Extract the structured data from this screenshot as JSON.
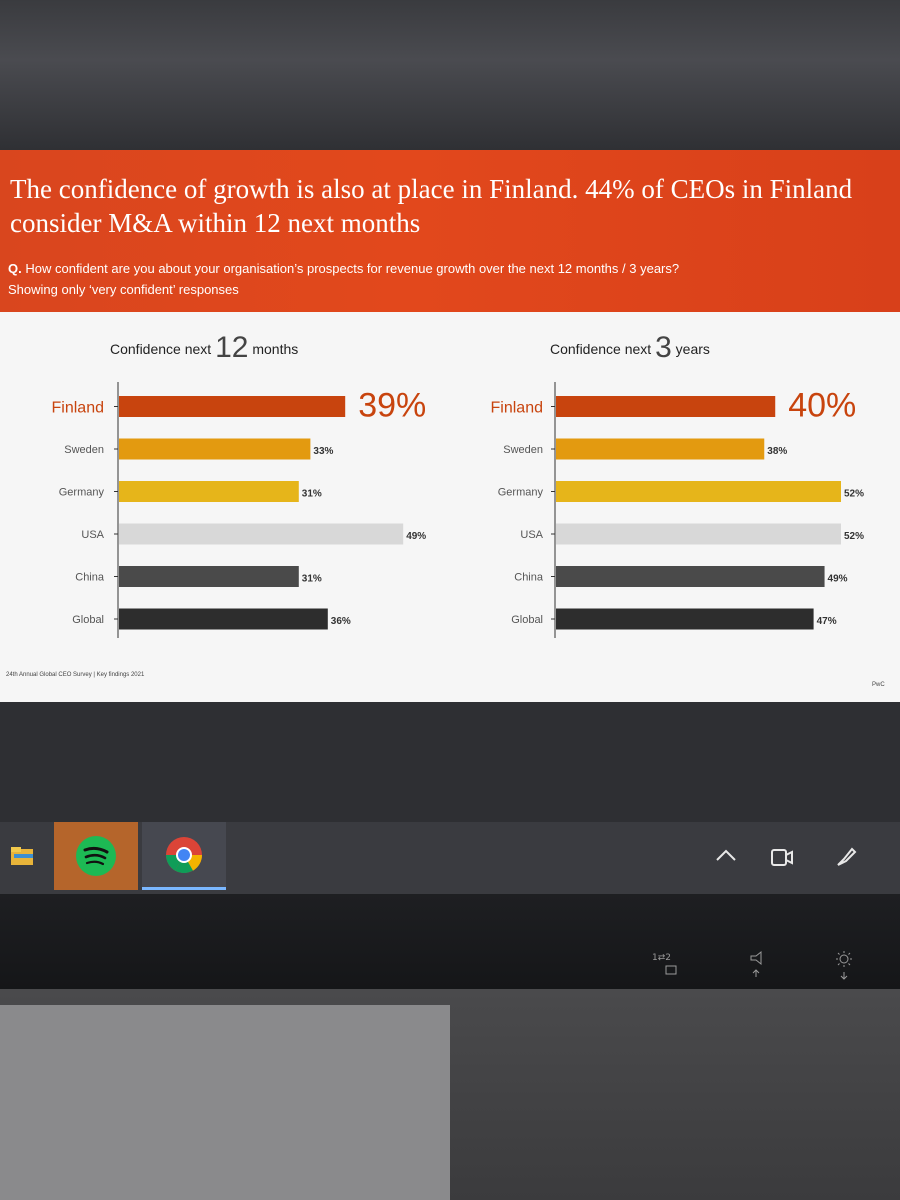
{
  "slide": {
    "title": "The confidence of growth is also at place in Finland. 44% of CEOs in Finland consider M&A within 12 next months",
    "question_prefix": "Q.",
    "question": "How confident are you about your organisation’s prospects for revenue growth over the next 12 months / 3 years?",
    "note": "Showing only ‘very confident’ responses",
    "footer_source": "24th Annual Global CEO Survey | Key findings 2021",
    "footer_brand": "PwC"
  },
  "colors": {
    "header_bg": "#e2481c",
    "finland": "#c8440e",
    "sweden": "#e39a10",
    "germany": "#e6b51a",
    "usa": "#d8d8d8",
    "china": "#4a4a4a",
    "global": "#2d2d2d"
  },
  "chart_data": [
    {
      "type": "bar",
      "orientation": "horizontal",
      "title_prefix": "Confidence next",
      "title_number": "12",
      "title_suffix": "months",
      "categories": [
        "Finland",
        "Sweden",
        "Germany",
        "USA",
        "China",
        "Global"
      ],
      "values": [
        39,
        33,
        31,
        49,
        31,
        36
      ],
      "labels": [
        "39%",
        "33%",
        "31%",
        "49%",
        "31%",
        "36%"
      ],
      "xlim": [
        0,
        50
      ],
      "highlight": "Finland"
    },
    {
      "type": "bar",
      "orientation": "horizontal",
      "title_prefix": "Confidence next",
      "title_number": "3",
      "title_suffix": "years",
      "categories": [
        "Finland",
        "Sweden",
        "Germany",
        "USA",
        "China",
        "Global"
      ],
      "values": [
        40,
        38,
        52,
        52,
        49,
        47
      ],
      "labels": [
        "40%",
        "38%",
        "52%",
        "52%",
        "49%",
        "47%"
      ],
      "xlim": [
        0,
        52
      ],
      "highlight": "Finland"
    }
  ],
  "taskbar": {
    "apps": [
      {
        "name": "File Explorer",
        "icon": "folder-icon"
      },
      {
        "name": "Spotify",
        "icon": "spotify-icon"
      },
      {
        "name": "Google Chrome",
        "icon": "chrome-icon"
      }
    ],
    "tray_icons": [
      "chevron-up-icon",
      "meet-now-icon",
      "pen-icon"
    ]
  },
  "monitor_controls": [
    "input-switch-icon",
    "volume-icon",
    "brightness-icon"
  ]
}
